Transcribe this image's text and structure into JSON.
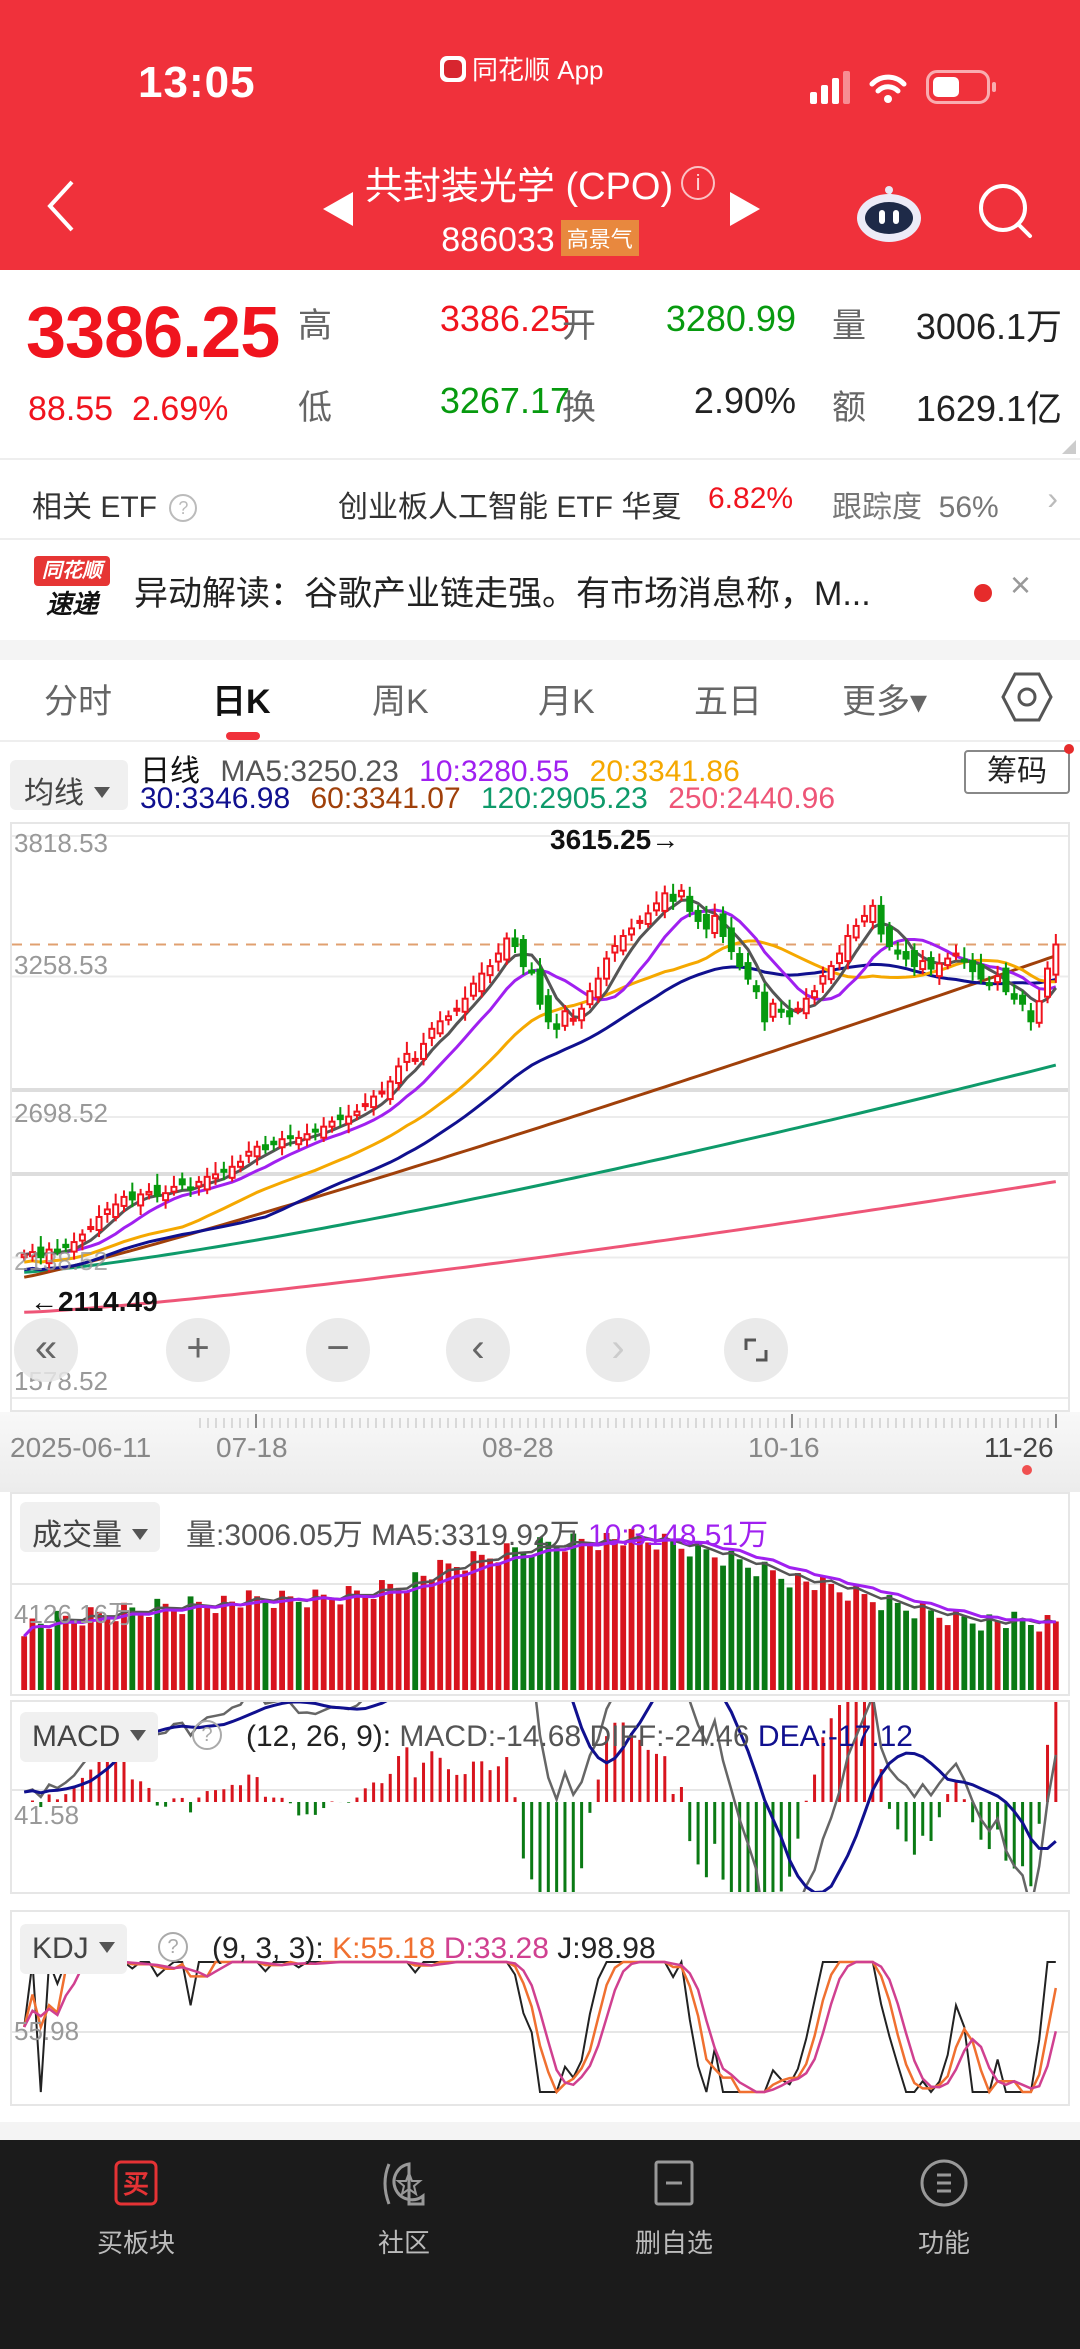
{
  "status_bar": {
    "time": "13:05",
    "app_name": "同花顺 App"
  },
  "header": {
    "title": "共封装光学 (CPO)",
    "code": "886033",
    "tag": "高景气",
    "icons": [
      "back-icon",
      "prev-triangle-icon",
      "info-icon",
      "next-triangle-icon",
      "robot-assistant-icon",
      "search-icon"
    ]
  },
  "quote": {
    "price": "3386.25",
    "change": "88.55",
    "change_pct": "2.69%",
    "high_label": "高",
    "high": "3386.25",
    "open_label": "开",
    "open": "3280.99",
    "volume_label": "量",
    "volume": "3006.1万",
    "low_label": "低",
    "low": "3267.17",
    "turnover_label": "换",
    "turnover": "2.90%",
    "amount_label": "额",
    "amount": "1629.1亿",
    "colors": {
      "up": "#f0141e",
      "down": "#079a0f"
    }
  },
  "etf": {
    "label": "相关 ETF",
    "help": "?",
    "name": "创业板人工智能 ETF 华夏",
    "pct": "6.82%",
    "tracking_label": "跟踪度",
    "tracking": "56%",
    "chevron": "›"
  },
  "news": {
    "logo_top": "同花顺",
    "logo_bottom": "速递",
    "text": "异动解读：谷歌产业链走强。有市场消息称，M...",
    "close": "×"
  },
  "tabs": {
    "items": [
      {
        "label": "分时",
        "active": false
      },
      {
        "label": "日K",
        "active": true
      },
      {
        "label": "周K",
        "active": false
      },
      {
        "label": "月K",
        "active": false
      },
      {
        "label": "五日",
        "active": false
      },
      {
        "label": "更多▾",
        "active": false
      }
    ]
  },
  "ma": {
    "selector": "均线",
    "period": "日线",
    "ma5": "MA5:3250.23",
    "ma10": "10:3280.55",
    "ma20": "20:3341.86",
    "ma30": "30:3346.98",
    "ma60": "60:3341.07",
    "ma120": "120:2905.23",
    "ma250": "250:2440.96",
    "chip_button": "筹码",
    "colors": {
      "ma5": "#555555",
      "ma10": "#a020f0",
      "ma20": "#f5a800",
      "ma30": "#10108f",
      "ma60": "#a0400a",
      "ma120": "#0e9a6a",
      "ma250": "#ee5577"
    }
  },
  "main_chart": {
    "y_labels": [
      "3818.53",
      "3258.53",
      "2698.52",
      "2138.52",
      "1578.52"
    ],
    "max_annotation": "3615.25→",
    "min_annotation": "←2114.49",
    "controls": [
      "«",
      "+",
      "−",
      "‹",
      "›",
      "⌜⌟"
    ],
    "x_labels": [
      "2025-06-11",
      "07-18",
      "08-28",
      "10-16",
      "11-26"
    ]
  },
  "volume_panel": {
    "selector": "成交量",
    "vol": "量:3006.05万",
    "ma5": "MA5:3319.92万",
    "ma10": "10:3148.51万",
    "y_label": "4126.16万"
  },
  "macd_panel": {
    "selector": "MACD",
    "help": "?",
    "params": "(12, 26, 9):",
    "macd": "MACD:-14.68",
    "diff": "DIFF:-24.46",
    "dea": "DEA:-17.12",
    "y_label": "41.58"
  },
  "kdj_panel": {
    "selector": "KDJ",
    "help": "?",
    "params": "(9, 3, 3):",
    "k": "K:55.18",
    "d": "D:33.28",
    "j": "J:98.98",
    "y_label": "55.98"
  },
  "bottom_nav": {
    "items": [
      {
        "label": "买板块",
        "icon": "buy-icon"
      },
      {
        "label": "社区",
        "icon": "community-icon"
      },
      {
        "label": "删自选",
        "icon": "remove-watchlist-icon"
      },
      {
        "label": "功能",
        "icon": "menu-icon"
      }
    ]
  },
  "chart_data": {
    "type": "candlestick",
    "title": "共封装光学 (CPO) 日K",
    "x_range": [
      "2025-06-11",
      "11-26"
    ],
    "x_ticks": [
      "2025-06-11",
      "07-18",
      "08-28",
      "10-16",
      "11-26"
    ],
    "ylim": [
      1578.52,
      3818.53
    ],
    "y_ticks": [
      3818.53,
      3258.53,
      2698.52,
      2138.52,
      1578.52
    ],
    "high_marker": 3615.25,
    "low_marker": 2114.49,
    "closes": [
      2150,
      2160,
      2140,
      2170,
      2165,
      2180,
      2200,
      2230,
      2260,
      2300,
      2330,
      2350,
      2380,
      2370,
      2390,
      2400,
      2385,
      2395,
      2420,
      2430,
      2410,
      2440,
      2460,
      2470,
      2480,
      2500,
      2520,
      2560,
      2580,
      2570,
      2590,
      2610,
      2620,
      2615,
      2630,
      2640,
      2660,
      2680,
      2690,
      2700,
      2720,
      2750,
      2780,
      2800,
      2840,
      2900,
      2950,
      2930,
      2990,
      3050,
      3080,
      3100,
      3130,
      3170,
      3230,
      3270,
      3300,
      3350,
      3410,
      3380,
      3300,
      3280,
      3150,
      3080,
      3050,
      3120,
      3090,
      3130,
      3200,
      3250,
      3330,
      3380,
      3420,
      3450,
      3480,
      3510,
      3550,
      3590,
      3560,
      3600,
      3520,
      3480,
      3450,
      3500,
      3420,
      3360,
      3300,
      3250,
      3200,
      3080,
      3150,
      3120,
      3100,
      3130,
      3170,
      3200,
      3260,
      3300,
      3350,
      3420,
      3460,
      3500,
      3540,
      3430,
      3380,
      3350,
      3330,
      3300,
      3320,
      3290,
      3310,
      3330,
      3350,
      3320,
      3280,
      3250,
      3230,
      3260,
      3200,
      3170,
      3150,
      3080,
      3160,
      3290,
      3386
    ],
    "ma_lines": {
      "MA5": 3250.23,
      "MA10": 3280.55,
      "MA20": 3341.86,
      "MA30": 3346.98,
      "MA60": 3341.07,
      "MA120": 2905.23,
      "MA250": 2440.96
    },
    "volume": {
      "last": "3006.05万",
      "MA5": "3319.92万",
      "MA10": "3148.51万",
      "ref_level": "4126.16万"
    },
    "macd": {
      "params": [
        12,
        26,
        9
      ],
      "MACD": -14.68,
      "DIFF": -24.46,
      "DEA": -17.12,
      "ref_level": 41.58
    },
    "kdj": {
      "params": [
        9,
        3,
        3
      ],
      "K": 55.18,
      "D": 33.28,
      "J": 98.98,
      "ref_level": 55.98
    }
  }
}
